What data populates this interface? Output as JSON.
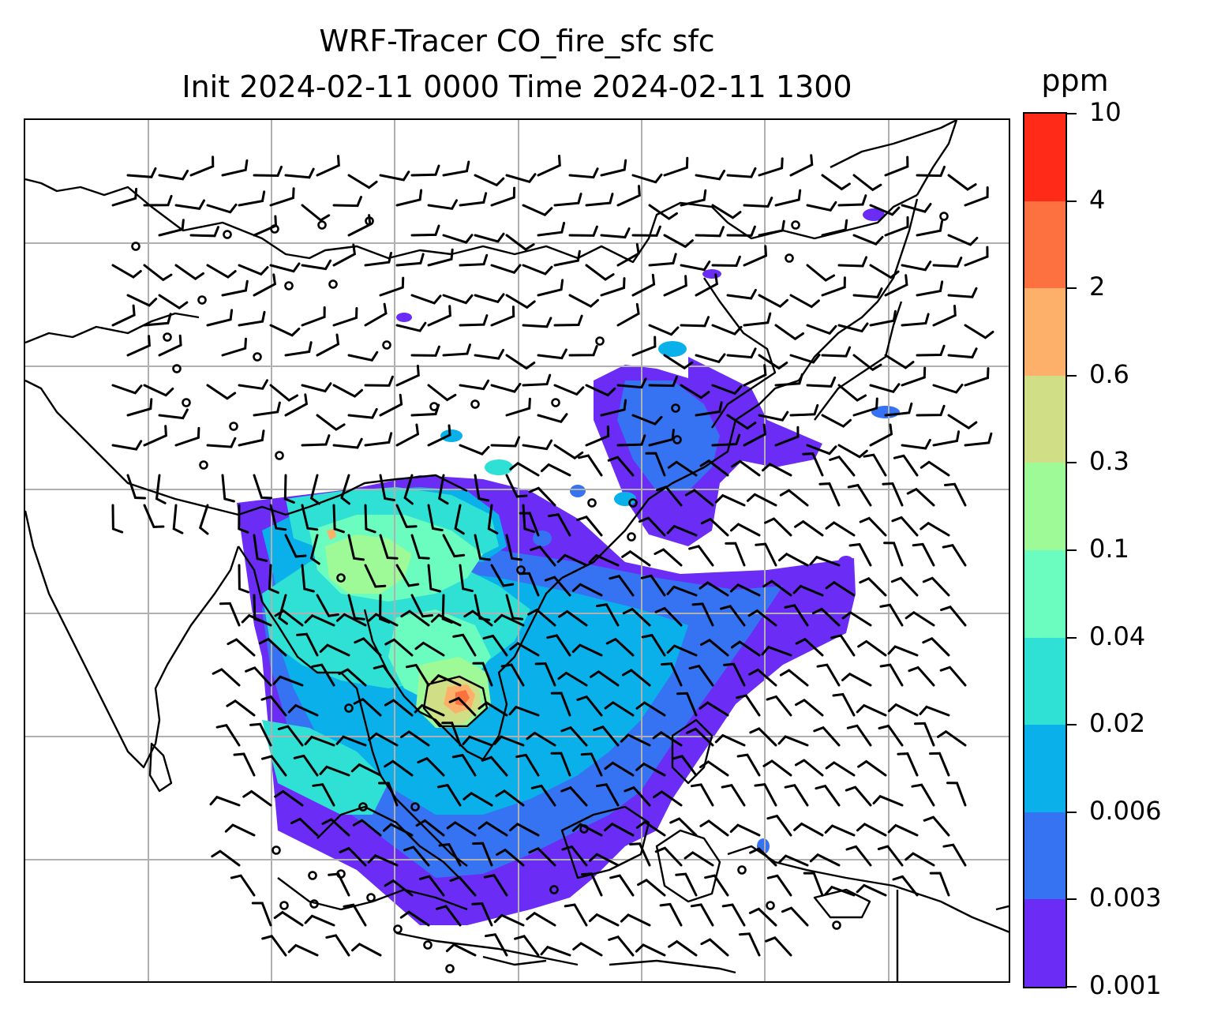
{
  "title": {
    "line1": "WRF-Tracer CO_fire_sfc sfc",
    "line2": "Init 2024-02-11 0000 Time 2024-02-11 1300"
  },
  "colorbar": {
    "unit": "ppm",
    "levels": [
      "0.001",
      "0.003",
      "0.006",
      "0.02",
      "0.04",
      "0.1",
      "0.3",
      "0.6",
      "2",
      "4",
      "10"
    ],
    "colors": [
      "#6b2cf5",
      "#3573f2",
      "#0ab0ea",
      "#2fe0d4",
      "#6bfcc0",
      "#9dfa97",
      "#d0df86",
      "#fdb06a",
      "#fd7140",
      "#ff2a17"
    ]
  },
  "map": {
    "gridlines": true,
    "grid_color": "#b0b0b0",
    "coastline_color": "#000000",
    "wind_barbs": true,
    "calm_marker": "circle"
  }
}
